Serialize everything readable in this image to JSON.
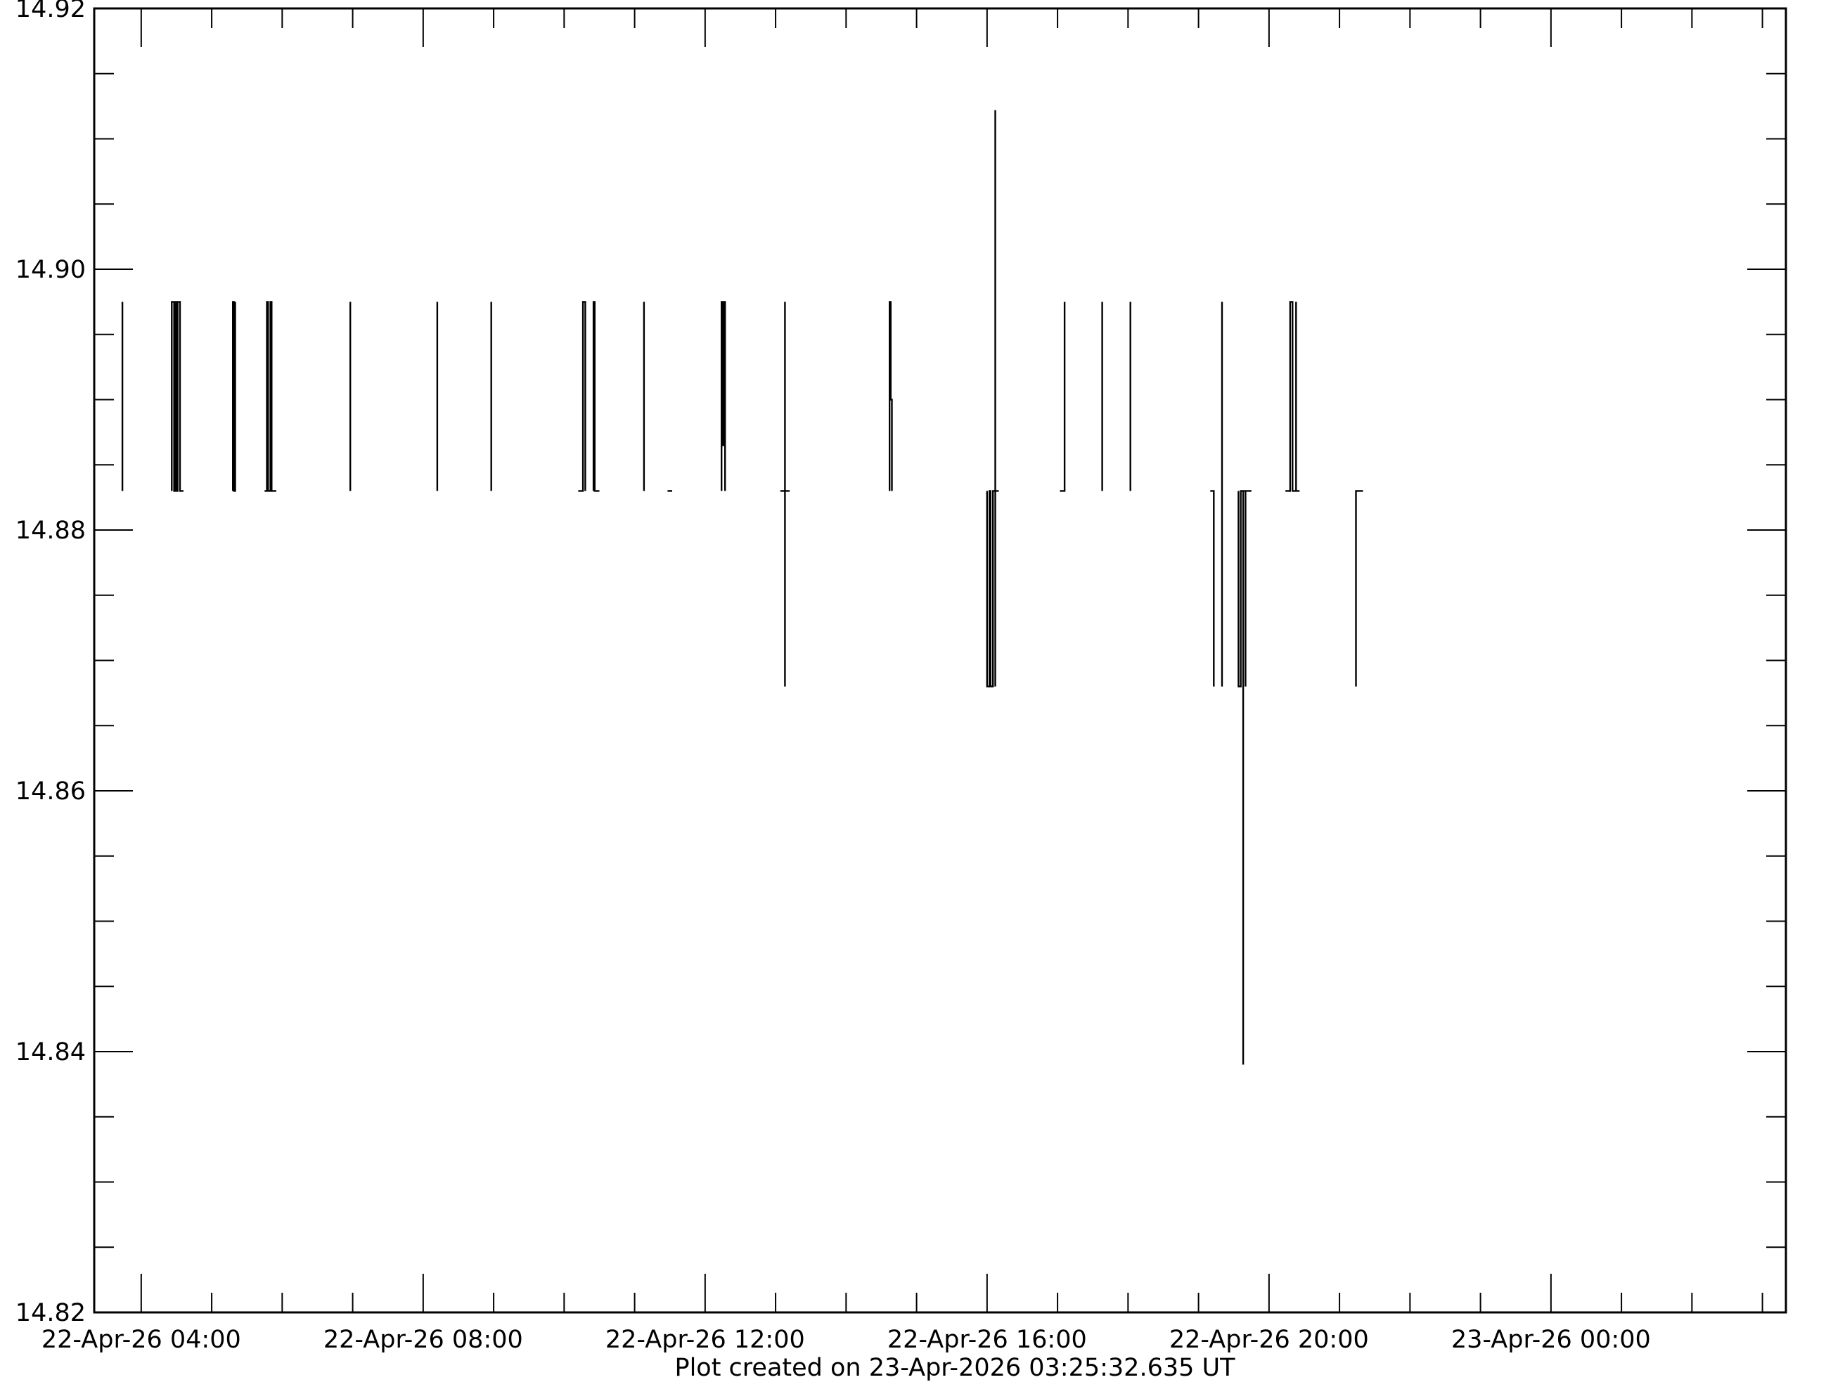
{
  "chart_data": {
    "type": "line",
    "title": "",
    "xlabel": "",
    "ylabel": "",
    "footer": "Plot created on 23-Apr-2026 03:25:32.635 UT",
    "ylim": [
      14.82,
      14.92
    ],
    "xlim": [
      "22-Apr-26 03:20",
      "23-Apr-26 03:20"
    ],
    "grid": false,
    "y_tick_labels": [
      "14.82",
      "14.84",
      "14.86",
      "14.88",
      "14.90",
      "14.92"
    ],
    "x_tick_labels": [
      "22-Apr-26 04:00",
      "22-Apr-26 08:00",
      "22-Apr-26 12:00",
      "22-Apr-26 16:00",
      "22-Apr-26 20:00",
      "23-Apr-26 00:00"
    ],
    "series": [
      {
        "points": [
          [
            "22-Apr-26 03:36",
            14.883
          ],
          [
            "22-Apr-26 03:44",
            14.883
          ],
          [
            "22-Apr-26 03:44",
            14.8975
          ],
          [
            "22-Apr-26 03:44",
            14.883
          ],
          [
            "22-Apr-26 04:26",
            14.883
          ],
          [
            "22-Apr-26 04:26",
            14.8975
          ],
          [
            "22-Apr-26 04:28",
            14.8975
          ],
          [
            "22-Apr-26 04:28",
            14.883
          ],
          [
            "22-Apr-26 04:29",
            14.883
          ],
          [
            "22-Apr-26 04:29",
            14.8975
          ],
          [
            "22-Apr-26 04:30",
            14.8975
          ],
          [
            "22-Apr-26 04:30",
            14.883
          ],
          [
            "22-Apr-26 04:31",
            14.883
          ],
          [
            "22-Apr-26 04:31",
            14.8975
          ],
          [
            "22-Apr-26 04:33",
            14.8975
          ],
          [
            "22-Apr-26 04:33",
            14.883
          ],
          [
            "22-Apr-26 04:36",
            14.883
          ],
          [
            "22-Apr-26 05:03",
            14.883
          ],
          [
            "22-Apr-26 05:18",
            14.883
          ],
          [
            "22-Apr-26 05:18",
            14.8975
          ],
          [
            "22-Apr-26 05:19",
            14.8975
          ],
          [
            "22-Apr-26 05:19",
            14.883
          ],
          [
            "22-Apr-26 05:20",
            14.883
          ],
          [
            "22-Apr-26 05:20",
            14.8975
          ],
          [
            "22-Apr-26 05:20",
            14.883
          ],
          [
            "22-Apr-26 05:45",
            14.883
          ],
          [
            "22-Apr-26 05:47",
            14.883
          ],
          [
            "22-Apr-26 05:47",
            14.8975
          ],
          [
            "22-Apr-26 05:48",
            14.8975
          ],
          [
            "22-Apr-26 05:48",
            14.883
          ],
          [
            "22-Apr-26 05:50",
            14.883
          ],
          [
            "22-Apr-26 05:50",
            14.8975
          ],
          [
            "22-Apr-26 05:51",
            14.8975
          ],
          [
            "22-Apr-26 05:51",
            14.883
          ],
          [
            "22-Apr-26 05:55",
            14.883
          ],
          [
            "22-Apr-26 06:40",
            14.883
          ],
          [
            "22-Apr-26 06:58",
            14.883
          ],
          [
            "22-Apr-26 06:58",
            14.8975
          ],
          [
            "22-Apr-26 06:58",
            14.883
          ],
          [
            "22-Apr-26 07:08",
            14.883
          ],
          [
            "22-Apr-26 07:23",
            14.883
          ],
          [
            "22-Apr-26 07:34",
            14.883
          ],
          [
            "22-Apr-26 07:48",
            14.883
          ],
          [
            "22-Apr-26 08:12",
            14.883
          ],
          [
            "22-Apr-26 08:12",
            14.8975
          ],
          [
            "22-Apr-26 08:12",
            14.883
          ],
          [
            "22-Apr-26 08:47",
            14.883
          ],
          [
            "22-Apr-26 08:58",
            14.883
          ],
          [
            "22-Apr-26 08:58",
            14.8975
          ],
          [
            "22-Apr-26 08:58",
            14.883
          ],
          [
            "22-Apr-26 09:07",
            14.883
          ],
          [
            "22-Apr-26 09:23",
            14.883
          ],
          [
            "22-Apr-26 09:41",
            14.883
          ],
          [
            "22-Apr-26 09:48",
            14.883
          ],
          [
            "22-Apr-26 10:02",
            14.883
          ],
          [
            "22-Apr-26 10:12",
            14.883
          ],
          [
            "22-Apr-26 10:16",
            14.883
          ],
          [
            "22-Apr-26 10:16",
            14.8975
          ],
          [
            "22-Apr-26 10:18",
            14.8975
          ],
          [
            "22-Apr-26 10:18",
            14.883
          ],
          [
            "22-Apr-26 10:25",
            14.883
          ],
          [
            "22-Apr-26 10:25",
            14.8975
          ],
          [
            "22-Apr-26 10:26",
            14.8975
          ],
          [
            "22-Apr-26 10:26",
            14.883
          ],
          [
            "22-Apr-26 10:30",
            14.883
          ],
          [
            "22-Apr-26 10:56",
            14.883
          ],
          [
            "22-Apr-26 11:08",
            14.883
          ],
          [
            "22-Apr-26 11:08",
            14.8975
          ],
          [
            "22-Apr-26 11:08",
            14.883
          ],
          [
            "22-Apr-26 11:18",
            14.883
          ],
          [
            "22-Apr-26 11:28",
            14.883
          ],
          [
            "22-Apr-26 11:32",
            14.883
          ],
          [
            "22-Apr-26 11:39",
            14.883
          ],
          [
            "22-Apr-26 11:52",
            14.883
          ],
          [
            "22-Apr-26 12:14",
            14.883
          ],
          [
            "22-Apr-26 12:14",
            14.8975
          ],
          [
            "22-Apr-26 12:15",
            14.8975
          ],
          [
            "22-Apr-26 12:15",
            14.8865
          ],
          [
            "22-Apr-26 12:16",
            14.8865
          ],
          [
            "22-Apr-26 12:16",
            14.8935
          ],
          [
            "22-Apr-26 12:16",
            14.8975
          ],
          [
            "22-Apr-26 12:17",
            14.8975
          ],
          [
            "22-Apr-26 12:17",
            14.883
          ],
          [
            "22-Apr-26 12:27",
            14.883
          ],
          [
            "22-Apr-26 12:38",
            14.883
          ],
          [
            "22-Apr-26 12:55",
            14.883
          ],
          [
            "22-Apr-26 13:04",
            14.883
          ],
          [
            "22-Apr-26 13:08",
            14.883
          ],
          [
            "22-Apr-26 13:08",
            14.8975
          ],
          [
            "22-Apr-26 13:08",
            14.883
          ],
          [
            "22-Apr-26 13:08",
            14.868
          ],
          [
            "22-Apr-26 13:08",
            14.883
          ],
          [
            "22-Apr-26 13:12",
            14.883
          ],
          [
            "22-Apr-26 14:37",
            14.883
          ],
          [
            "22-Apr-26 14:37",
            14.8975
          ],
          [
            "22-Apr-26 14:38",
            14.8975
          ],
          [
            "22-Apr-26 14:38",
            14.89
          ],
          [
            "22-Apr-26 14:39",
            14.89
          ],
          [
            "22-Apr-26 14:39",
            14.883
          ],
          [
            "22-Apr-26 14:52",
            14.883
          ],
          [
            "22-Apr-26 16:00",
            14.883
          ],
          [
            "22-Apr-26 16:00",
            14.868
          ],
          [
            "22-Apr-26 16:02",
            14.868
          ],
          [
            "22-Apr-26 16:02",
            14.883
          ],
          [
            "22-Apr-26 16:03",
            14.883
          ],
          [
            "22-Apr-26 16:03",
            14.868
          ],
          [
            "22-Apr-26 16:05",
            14.868
          ],
          [
            "22-Apr-26 16:05",
            14.883
          ],
          [
            "22-Apr-26 16:07",
            14.883
          ],
          [
            "22-Apr-26 16:07",
            14.868
          ],
          [
            "22-Apr-26 16:07",
            14.9122
          ],
          [
            "22-Apr-26 16:07",
            14.883
          ],
          [
            "22-Apr-26 16:10",
            14.883
          ],
          [
            "22-Apr-26 17:02",
            14.883
          ],
          [
            "22-Apr-26 17:06",
            14.883
          ],
          [
            "22-Apr-26 17:06",
            14.8975
          ],
          [
            "22-Apr-26 17:06",
            14.883
          ],
          [
            "22-Apr-26 17:38",
            14.883
          ],
          [
            "22-Apr-26 17:38",
            14.8975
          ],
          [
            "22-Apr-26 17:38",
            14.883
          ],
          [
            "22-Apr-26 18:02",
            14.883
          ],
          [
            "22-Apr-26 18:02",
            14.8975
          ],
          [
            "22-Apr-26 18:02",
            14.883
          ],
          [
            "22-Apr-26 18:40",
            14.883
          ],
          [
            "22-Apr-26 18:56",
            14.883
          ],
          [
            "22-Apr-26 19:10",
            14.883
          ],
          [
            "22-Apr-26 19:13",
            14.883
          ],
          [
            "22-Apr-26 19:13",
            14.868
          ],
          [
            "22-Apr-26 19:13",
            14.883
          ],
          [
            "22-Apr-26 19:20",
            14.883
          ],
          [
            "22-Apr-26 19:20",
            14.868
          ],
          [
            "22-Apr-26 19:20",
            14.8975
          ],
          [
            "22-Apr-26 19:20",
            14.883
          ],
          [
            "22-Apr-26 19:34",
            14.883
          ],
          [
            "22-Apr-26 19:34",
            14.868
          ],
          [
            "22-Apr-26 19:36",
            14.868
          ],
          [
            "22-Apr-26 19:36",
            14.883
          ],
          [
            "22-Apr-26 19:38",
            14.883
          ],
          [
            "22-Apr-26 19:38",
            14.839
          ],
          [
            "22-Apr-26 19:38",
            14.883
          ],
          [
            "22-Apr-26 19:40",
            14.883
          ],
          [
            "22-Apr-26 19:40",
            14.868
          ],
          [
            "22-Apr-26 19:40",
            14.883
          ],
          [
            "22-Apr-26 19:45",
            14.883
          ],
          [
            "22-Apr-26 20:14",
            14.883
          ],
          [
            "22-Apr-26 20:18",
            14.883
          ],
          [
            "22-Apr-26 20:18",
            14.8975
          ],
          [
            "22-Apr-26 20:20",
            14.8975
          ],
          [
            "22-Apr-26 20:20",
            14.883
          ],
          [
            "22-Apr-26 20:23",
            14.883
          ],
          [
            "22-Apr-26 20:23",
            14.8975
          ],
          [
            "22-Apr-26 20:23",
            14.883
          ],
          [
            "22-Apr-26 20:26",
            14.883
          ],
          [
            "22-Apr-26 21:08",
            14.883
          ],
          [
            "22-Apr-26 21:14",
            14.883
          ],
          [
            "22-Apr-26 21:14",
            14.868
          ],
          [
            "22-Apr-26 21:14",
            14.883
          ],
          [
            "22-Apr-26 21:20",
            14.883
          ]
        ]
      }
    ]
  }
}
